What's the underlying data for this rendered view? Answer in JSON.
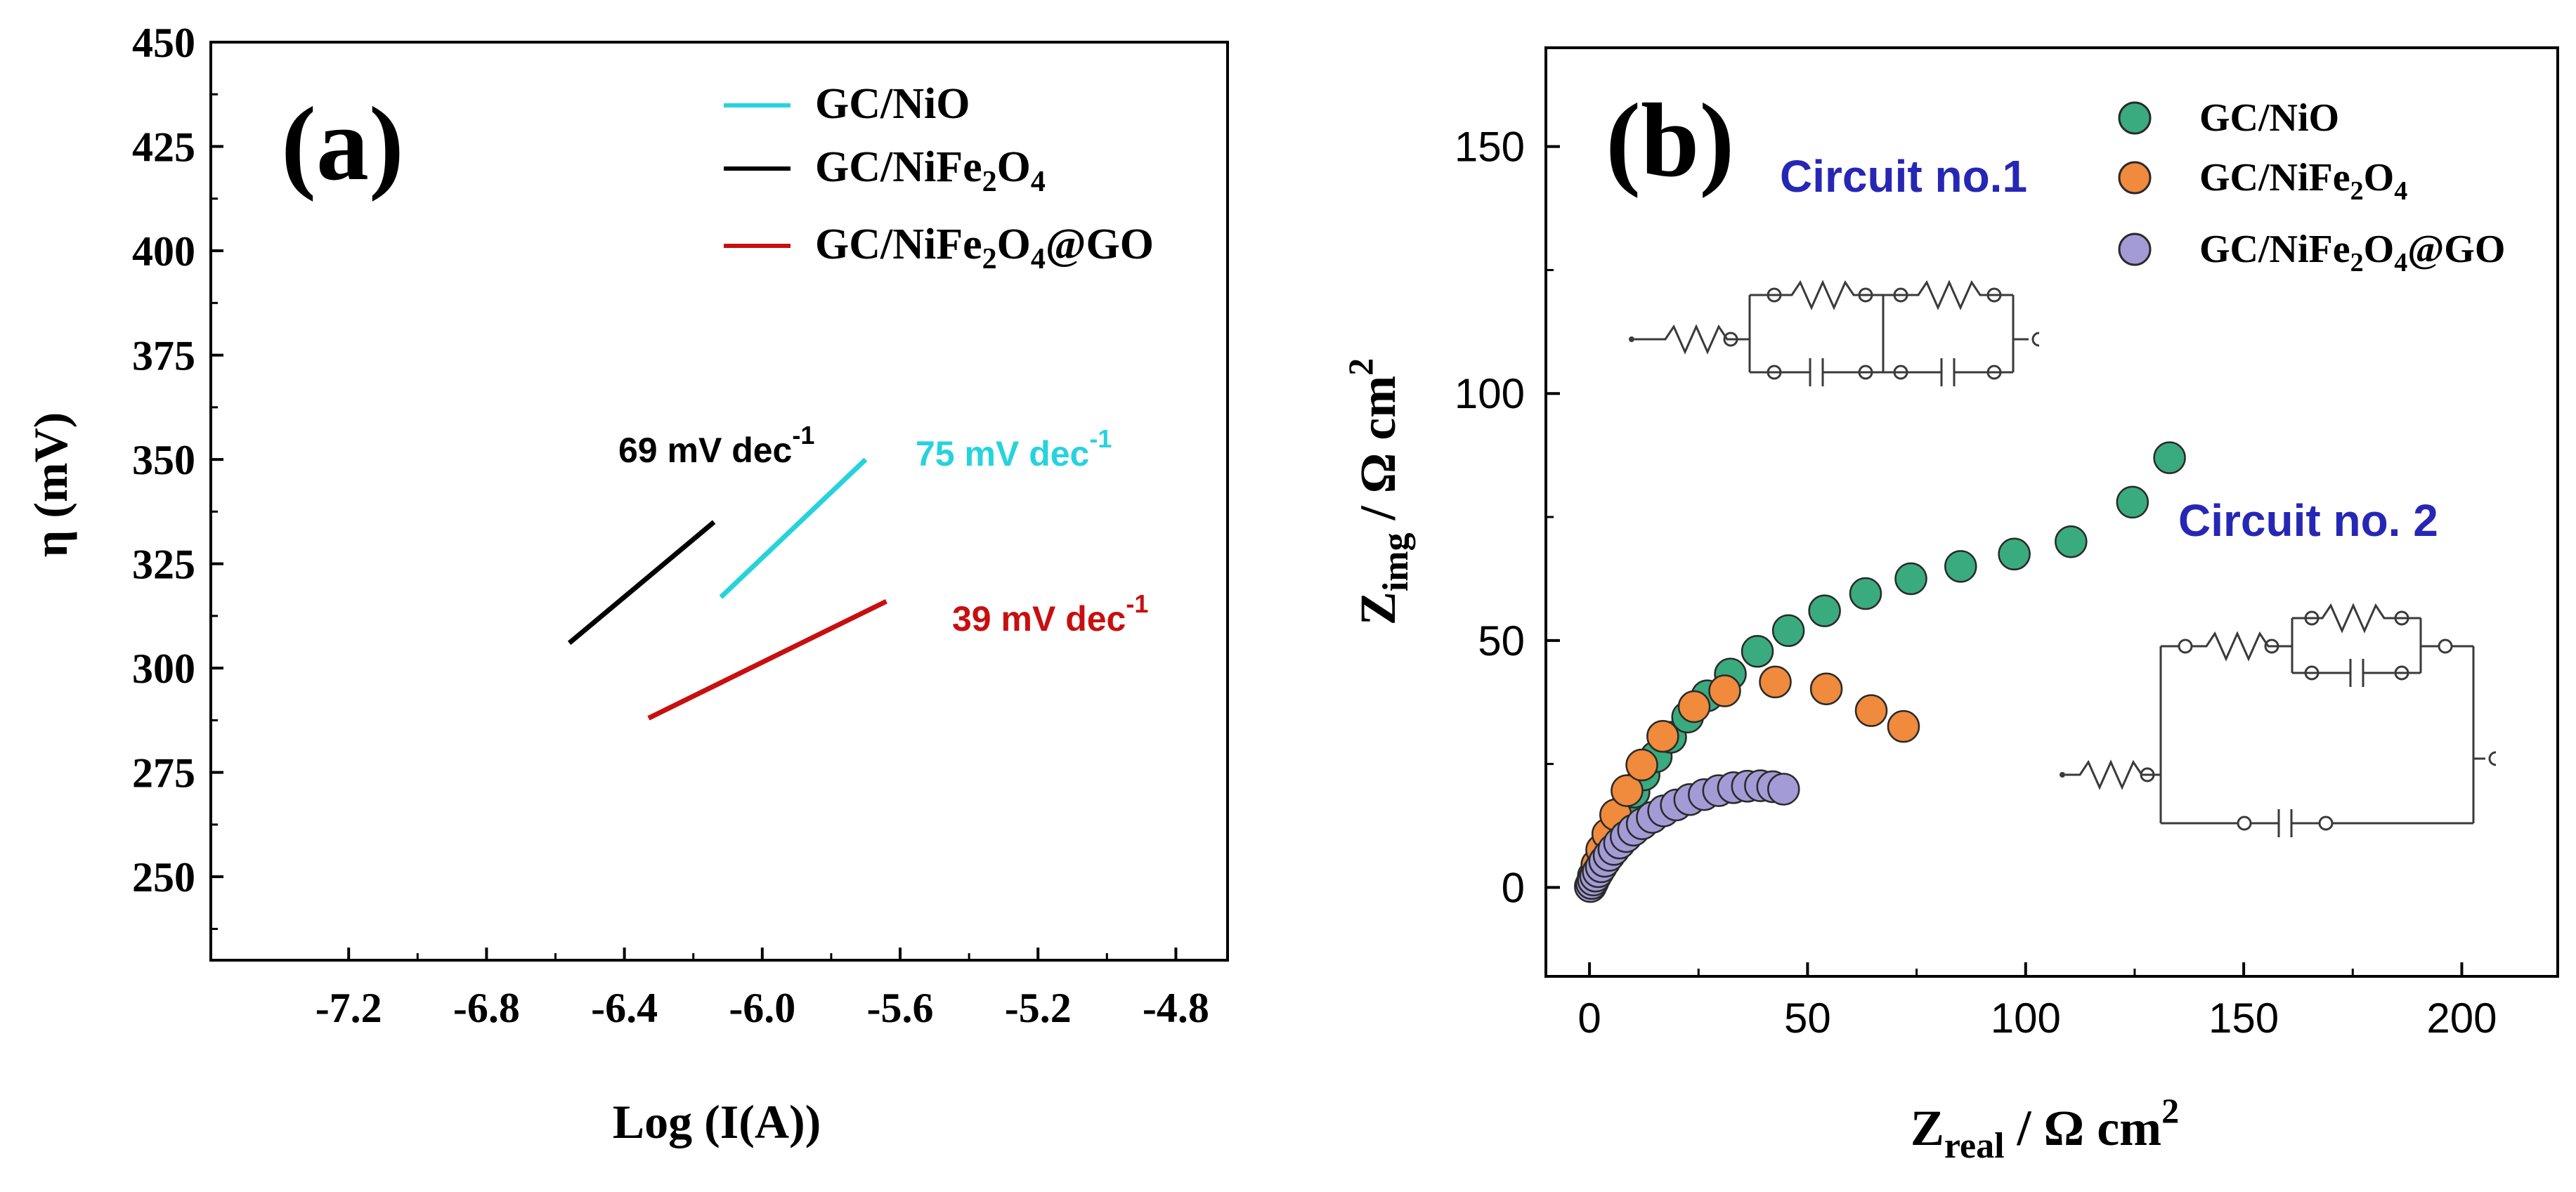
{
  "chart_data": [
    {
      "panel_label": "(a)",
      "type": "line",
      "title": "",
      "xlabel": "Log (I(A))",
      "ylabel": "η (mV)",
      "xlim": [
        -7.6,
        -4.65
      ],
      "ylim": [
        230,
        450
      ],
      "xticks": [
        "-7.2",
        "-6.8",
        "-6.4",
        "-6.0",
        "-5.6",
        "-5.2",
        "-4.8"
      ],
      "yticks": [
        "250",
        "275",
        "300",
        "325",
        "350",
        "375",
        "400",
        "425",
        "450"
      ],
      "grid": false,
      "legend_position": "top-right",
      "series": [
        {
          "name": "GC/NiO",
          "name_main": "GC/NiO",
          "color": "#26d3dc",
          "x": [
            -6.12,
            -5.7
          ],
          "y": [
            317,
            350
          ],
          "annotation": {
            "value": "75 mV dec",
            "exp": "-1"
          }
        },
        {
          "name": "GC/NiFe2O4",
          "name_main": "GC/NiFe",
          "name_sub1": "2",
          "name_mid": "O",
          "name_sub2": "4",
          "name_tail": "",
          "color": "#000000",
          "x": [
            -6.56,
            -6.14
          ],
          "y": [
            306,
            335
          ],
          "annotation": {
            "value": "69 mV dec",
            "exp": "-1"
          }
        },
        {
          "name": "GC/NiFe2O4@GO",
          "name_main": "GC/NiFe",
          "name_sub1": "2",
          "name_mid": "O",
          "name_sub2": "4",
          "name_tail": "@GO",
          "color": "#c80f0f",
          "x": [
            -6.33,
            -5.64
          ],
          "y": [
            288,
            316
          ],
          "annotation": {
            "value": "39 mV dec",
            "exp": "-1"
          }
        }
      ]
    },
    {
      "panel_label": "(b)",
      "type": "scatter",
      "title": "",
      "xlabel_main": "Z",
      "xlabel_sub": "real",
      "xlabel_tail": " / Ω cm",
      "xlabel_exp": "2",
      "ylabel_main": "Z",
      "ylabel_sub": "img",
      "ylabel_tail": " / Ω cm",
      "ylabel_exp": "2",
      "xlim": [
        -10,
        222
      ],
      "ylim": [
        -18,
        170
      ],
      "xticks": [
        "0",
        "50",
        "100",
        "150",
        "200"
      ],
      "yticks": [
        "0",
        "50",
        "100",
        "150"
      ],
      "grid": false,
      "legend_position": "top-right",
      "annotations": {
        "circuit1": "Circuit no.1",
        "circuit2": "Circuit no. 2"
      },
      "series": [
        {
          "name": "GC/NiO",
          "name_main": "GC/NiO",
          "color": "#3aab7e",
          "x": [
            0.3,
            0.8,
            1.4,
            2.1,
            3.0,
            4.0,
            5.2,
            6.6,
            8.2,
            10.2,
            12.5,
            15.3,
            18.6,
            22.5,
            27.0,
            32.3,
            38.5,
            45.6,
            53.9,
            63.3,
            73.7,
            85.1,
            97.4,
            110.4,
            124.5,
            133.0
          ],
          "y": [
            0.3,
            1.2,
            2.4,
            3.9,
            5.7,
            7.8,
            10.3,
            13.0,
            16.0,
            19.3,
            22.8,
            26.5,
            30.4,
            34.5,
            38.8,
            43.2,
            47.8,
            52.0,
            56.0,
            59.5,
            62.5,
            65.0,
            67.5,
            70.0,
            78.0,
            87.0
          ]
        },
        {
          "name": "GC/NiFe2O4",
          "name_main": "GC/NiFe",
          "name_sub1": "2",
          "name_mid": "O",
          "name_sub2": "4",
          "name_tail": "",
          "color": "#f08a3c",
          "x": [
            0.3,
            0.7,
            1.2,
            1.8,
            2.5,
            3.4,
            4.5,
            5.8,
            7.3,
            9.2,
            11.4,
            14.0,
            17.4,
            21.4,
            26.0,
            31.6,
            37.6,
            44.0,
            51.6,
            60.0,
            69.4,
            74.0
          ],
          "y": [
            0.4,
            1.5,
            3.0,
            4.7,
            6.8,
            9.2,
            11.8,
            14.6,
            17.6,
            20.8,
            24.2,
            27.8,
            31.4,
            34.7,
            37.5,
            40.0,
            41.8,
            43.0,
            42.6,
            40.0,
            35.2,
            33.5
          ],
          "x_shown": [
            0.3,
            0.9,
            1.7,
            2.8,
            4.2,
            6.0,
            8.6,
            12.0,
            16.8,
            24.0,
            31.0,
            42.6,
            54.3,
            64.6,
            72.0
          ],
          "y_shown": [
            0.4,
            2.3,
            4.6,
            7.6,
            10.8,
            14.7,
            19.6,
            24.8,
            30.6,
            36.6,
            39.8,
            41.6,
            40.2,
            35.8,
            32.6
          ]
        },
        {
          "name": "GC/NiFe2O4@GO",
          "name_main": "GC/NiFe",
          "name_sub1": "2",
          "name_mid": "O",
          "name_sub2": "4",
          "name_tail": "@GO",
          "color": "#a39bd6",
          "x": [
            0.2,
            0.5,
            0.9,
            1.4,
            2.0,
            2.7,
            3.5,
            4.5,
            5.6,
            6.9,
            8.4,
            10.1,
            12.1,
            14.4,
            17.0,
            19.9,
            23.0,
            26.3,
            29.6,
            33.0,
            36.2,
            39.2,
            42.0,
            44.5
          ],
          "y": [
            0.2,
            0.8,
            1.5,
            2.3,
            3.2,
            4.2,
            5.3,
            6.5,
            7.7,
            9.0,
            10.3,
            11.6,
            12.9,
            14.2,
            15.5,
            16.7,
            17.8,
            18.8,
            19.6,
            20.2,
            20.5,
            20.6,
            20.4,
            19.9
          ]
        }
      ]
    }
  ]
}
